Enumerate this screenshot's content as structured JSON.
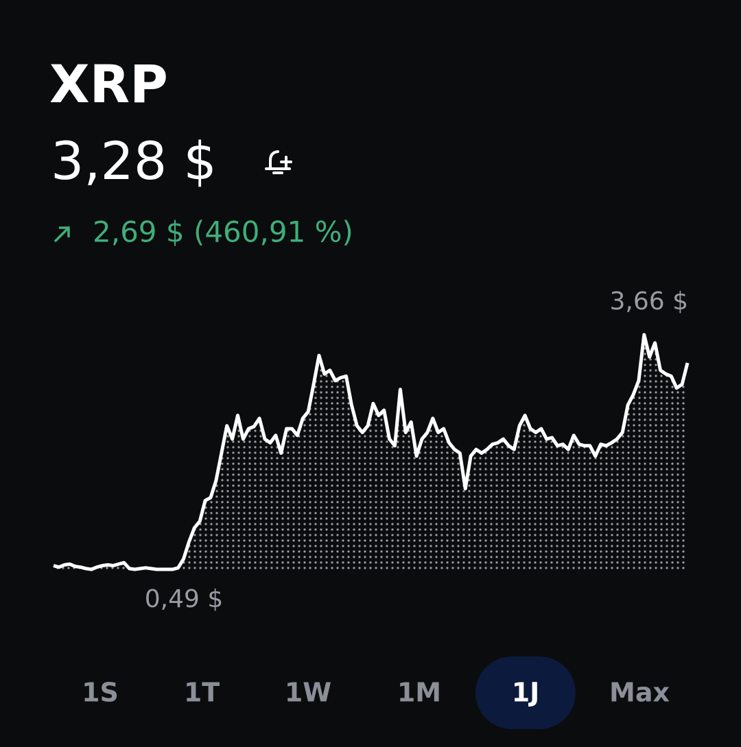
{
  "header": {
    "title": "XRP",
    "price": "3,28 $",
    "change": "2,69 $ (460,91 %)"
  },
  "chart_data": {
    "type": "line",
    "color": "#ffffff",
    "values": [
      0.54,
      0.52,
      0.55,
      0.56,
      0.53,
      0.52,
      0.5,
      0.49,
      0.52,
      0.54,
      0.55,
      0.54,
      0.56,
      0.58,
      0.5,
      0.49,
      0.5,
      0.51,
      0.5,
      0.49,
      0.49,
      0.49,
      0.49,
      0.51,
      0.63,
      0.86,
      1.05,
      1.14,
      1.42,
      1.46,
      1.69,
      2.06,
      2.43,
      2.25,
      2.57,
      2.25,
      2.39,
      2.42,
      2.53,
      2.25,
      2.2,
      2.3,
      2.06,
      2.39,
      2.39,
      2.3,
      2.53,
      2.62,
      2.99,
      3.38,
      3.13,
      3.18,
      3.04,
      3.08,
      3.1,
      2.71,
      2.43,
      2.34,
      2.43,
      2.73,
      2.57,
      2.64,
      2.25,
      2.16,
      2.92,
      2.34,
      2.48,
      2.02,
      2.25,
      2.34,
      2.53,
      2.34,
      2.39,
      2.2,
      2.11,
      2.06,
      1.58,
      2.02,
      2.11,
      2.06,
      2.11,
      2.18,
      2.2,
      2.25,
      2.16,
      2.11,
      2.43,
      2.57,
      2.39,
      2.34,
      2.39,
      2.25,
      2.27,
      2.16,
      2.18,
      2.11,
      2.3,
      2.18,
      2.16,
      2.16,
      2.02,
      2.18,
      2.16,
      2.2,
      2.25,
      2.34,
      2.71,
      2.85,
      3.04,
      3.66,
      3.36,
      3.55,
      3.18,
      3.13,
      3.1,
      2.94,
      2.99,
      3.28
    ],
    "annotations": [
      {
        "value": 3.66,
        "label": "3,66 $"
      },
      {
        "value": 0.49,
        "label": "0,49 $"
      }
    ]
  },
  "ranges": {
    "options": [
      "1S",
      "1T",
      "1W",
      "1M",
      "1J",
      "Max"
    ],
    "selected": 4
  }
}
